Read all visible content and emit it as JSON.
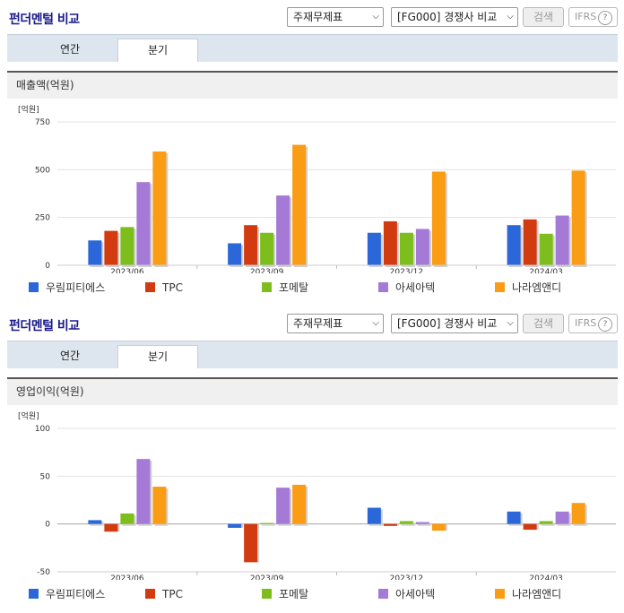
{
  "panels": [
    {
      "title": "펀더멘털 비교",
      "select1": "주재무제표",
      "select2": "[FG000] 경쟁사 비교",
      "search_label": "검색",
      "ifrs_label": "IFRS",
      "ifrs_help": "?",
      "tabs": [
        {
          "label": "연간"
        },
        {
          "label": "분기"
        }
      ],
      "active_tab": "분기",
      "section_title": "매출액(억원)"
    },
    {
      "title": "펀더멘털 비교",
      "select1": "주재무제표",
      "select2": "[FG000] 경쟁사 비교",
      "search_label": "검색",
      "ifrs_label": "IFRS",
      "ifrs_help": "?",
      "tabs": [
        {
          "label": "연간"
        },
        {
          "label": "분기"
        }
      ],
      "active_tab": "분기",
      "section_title": "영업이익(억원)"
    }
  ],
  "colors": {
    "series": [
      "#2b67d8",
      "#d23a10",
      "#7dbd1c",
      "#a57ad6",
      "#fa9c14"
    ],
    "tab_bg": "#dde6ef",
    "title": "#1a1a8c"
  },
  "chart_data": [
    {
      "type": "bar",
      "unit_label": "[억원]",
      "categories": [
        "2023/06",
        "2023/09",
        "2023/12",
        "2024/03"
      ],
      "ylim": [
        0,
        750
      ],
      "yticks": [
        0,
        250,
        500,
        750
      ],
      "grid": true,
      "legend_position": "bottom",
      "series": [
        {
          "name": "우림피티에스",
          "values": [
            130,
            115,
            170,
            210
          ]
        },
        {
          "name": "TPC",
          "values": [
            180,
            210,
            230,
            240
          ]
        },
        {
          "name": "포메탈",
          "values": [
            200,
            170,
            170,
            165
          ]
        },
        {
          "name": "아세아텍",
          "values": [
            435,
            365,
            190,
            260
          ]
        },
        {
          "name": "나라엠앤디",
          "values": [
            595,
            630,
            490,
            495
          ]
        }
      ]
    },
    {
      "type": "bar",
      "unit_label": "[억원]",
      "categories": [
        "2023/06",
        "2023/09",
        "2023/12",
        "2024/03"
      ],
      "ylim": [
        -50,
        100
      ],
      "yticks": [
        -50,
        0,
        50,
        100
      ],
      "grid": true,
      "legend_position": "bottom",
      "series": [
        {
          "name": "우림피티에스",
          "values": [
            4,
            -4,
            17,
            13
          ]
        },
        {
          "name": "TPC",
          "values": [
            -8,
            -40,
            -2,
            -6
          ]
        },
        {
          "name": "포메탈",
          "values": [
            11,
            1,
            3,
            3
          ]
        },
        {
          "name": "아세아텍",
          "values": [
            68,
            38,
            2,
            13
          ]
        },
        {
          "name": "나라엠앤디",
          "values": [
            39,
            41,
            -7,
            22
          ]
        }
      ]
    }
  ]
}
